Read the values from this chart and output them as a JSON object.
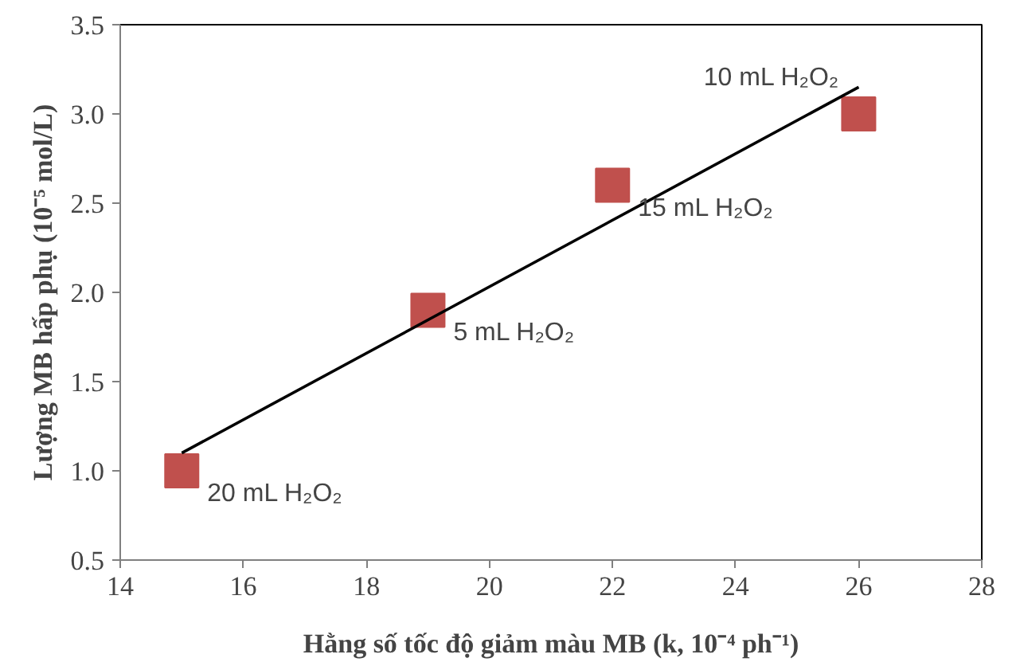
{
  "chart_data": {
    "type": "scatter",
    "xlabel": "Hằng số tốc độ giảm màu MB (k, 10⁻⁴ ph⁻¹)",
    "ylabel": "Lượng MB hấp phụ (10⁻⁵ mol/L)",
    "series": [
      {
        "color": "#c0504d",
        "marker": "square",
        "x": [
          15,
          19,
          22,
          26
        ],
        "values": [
          1.0,
          1.9,
          2.6,
          3.0
        ]
      },
      {
        "type": "line",
        "color": "#000000",
        "marker": "none",
        "line_style": "solid",
        "x": [
          15,
          26
        ],
        "values": [
          1.1,
          3.15
        ]
      }
    ],
    "annotations": [
      {
        "text": "20 mL H₂O₂",
        "x": 15,
        "y": 1.0
      },
      {
        "text": "5 mL H₂O₂",
        "x": 19,
        "y": 1.9
      },
      {
        "text": "15 mL H₂O₂",
        "x": 22,
        "y": 2.6
      },
      {
        "text": "10 mL H₂O₂",
        "x": 26,
        "y": 3.0
      }
    ],
    "xlim": [
      14,
      28
    ],
    "ylim": [
      0.5,
      3.5
    ],
    "xticks": [
      14,
      16,
      18,
      20,
      22,
      24,
      26,
      28
    ],
    "yticks": [
      0.5,
      {
        "value": 1,
        "label": "1.0"
      },
      1.5,
      {
        "value": 2,
        "label": "2.0"
      },
      2.5,
      {
        "value": 3,
        "label": "3.0"
      },
      3.5
    ],
    "grid": false
  }
}
